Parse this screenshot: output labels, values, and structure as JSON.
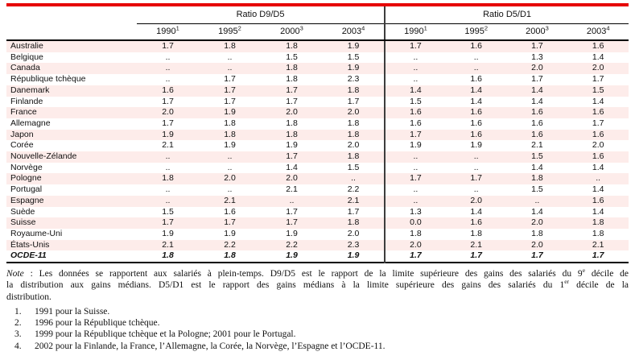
{
  "colors": {
    "accent_red": "#e60000",
    "row_pink": "#fdecea",
    "divider": "#3d3d3d"
  },
  "table": {
    "group_headers": [
      "Ratio D9/D5",
      "Ratio D5/D1"
    ],
    "years": [
      {
        "label": "1990",
        "sup": "1"
      },
      {
        "label": "1995",
        "sup": "2"
      },
      {
        "label": "2000",
        "sup": "3"
      },
      {
        "label": "2003",
        "sup": "4"
      }
    ],
    "rows": [
      {
        "label": "Australie",
        "bold": false,
        "d9d5": [
          "1.7",
          "1.8",
          "1.8",
          "1.9"
        ],
        "d5d1": [
          "1.7",
          "1.6",
          "1.7",
          "1.6"
        ]
      },
      {
        "label": "Belgique",
        "bold": false,
        "d9d5": [
          "..",
          "..",
          "1.5",
          "1.5"
        ],
        "d5d1": [
          "..",
          "..",
          "1.3",
          "1.4"
        ]
      },
      {
        "label": "Canada",
        "bold": false,
        "d9d5": [
          "..",
          "..",
          "1.8",
          "1.9"
        ],
        "d5d1": [
          "..",
          "..",
          "2.0",
          "2.0"
        ]
      },
      {
        "label": "République tchèque",
        "bold": false,
        "d9d5": [
          "..",
          "1.7",
          "1.8",
          "2.3"
        ],
        "d5d1": [
          "..",
          "1.6",
          "1.7",
          "1.7"
        ]
      },
      {
        "label": "Danemark",
        "bold": false,
        "d9d5": [
          "1.6",
          "1.7",
          "1.7",
          "1.8"
        ],
        "d5d1": [
          "1.4",
          "1.4",
          "1.4",
          "1.5"
        ]
      },
      {
        "label": "Finlande",
        "bold": false,
        "d9d5": [
          "1.7",
          "1.7",
          "1.7",
          "1.7"
        ],
        "d5d1": [
          "1.5",
          "1.4",
          "1.4",
          "1.4"
        ]
      },
      {
        "label": "France",
        "bold": false,
        "d9d5": [
          "2.0",
          "1.9",
          "2.0",
          "2.0"
        ],
        "d5d1": [
          "1.6",
          "1.6",
          "1.6",
          "1.6"
        ]
      },
      {
        "label": "Allemagne",
        "bold": false,
        "d9d5": [
          "1.7",
          "1.8",
          "1.8",
          "1.8"
        ],
        "d5d1": [
          "1.6",
          "1.6",
          "1.6",
          "1.7"
        ]
      },
      {
        "label": "Japon",
        "bold": false,
        "d9d5": [
          "1.9",
          "1.8",
          "1.8",
          "1.8"
        ],
        "d5d1": [
          "1.7",
          "1.6",
          "1.6",
          "1.6"
        ]
      },
      {
        "label": "Corée",
        "bold": false,
        "d9d5": [
          "2.1",
          "1.9",
          "1.9",
          "2.0"
        ],
        "d5d1": [
          "1.9",
          "1.9",
          "2.1",
          "2.0"
        ]
      },
      {
        "label": "Nouvelle-Zélande",
        "bold": false,
        "d9d5": [
          "..",
          "..",
          "1.7",
          "1.8"
        ],
        "d5d1": [
          "..",
          "..",
          "1.5",
          "1.6"
        ]
      },
      {
        "label": "Norvège",
        "bold": false,
        "d9d5": [
          "..",
          "..",
          "1.4",
          "1.5"
        ],
        "d5d1": [
          "..",
          "..",
          "1.4",
          "1.4"
        ]
      },
      {
        "label": "Pologne",
        "bold": false,
        "d9d5": [
          "1.8",
          "2.0",
          "2.0",
          ".."
        ],
        "d5d1": [
          "1.7",
          "1.7",
          "1.8",
          ".."
        ]
      },
      {
        "label": "Portugal",
        "bold": false,
        "d9d5": [
          "..",
          "..",
          "2.1",
          "2.2"
        ],
        "d5d1": [
          "..",
          "..",
          "1.5",
          "1.4"
        ]
      },
      {
        "label": "Espagne",
        "bold": false,
        "d9d5": [
          "..",
          "2.1",
          "..",
          "2.1"
        ],
        "d5d1": [
          "..",
          "2.0",
          "..",
          "1.6"
        ]
      },
      {
        "label": "Suède",
        "bold": false,
        "d9d5": [
          "1.5",
          "1.6",
          "1.7",
          "1.7"
        ],
        "d5d1": [
          "1.3",
          "1.4",
          "1.4",
          "1.4"
        ]
      },
      {
        "label": "Suisse",
        "bold": false,
        "d9d5": [
          "1.7",
          "1.7",
          "1.7",
          "1.8"
        ],
        "d5d1": [
          "0.0",
          "1.6",
          "2.0",
          "1.8"
        ]
      },
      {
        "label": "Royaume-Uni",
        "bold": false,
        "d9d5": [
          "1.9",
          "1.9",
          "1.9",
          "2.0"
        ],
        "d5d1": [
          "1.8",
          "1.8",
          "1.8",
          "1.8"
        ]
      },
      {
        "label": "États-Unis",
        "bold": false,
        "d9d5": [
          "2.1",
          "2.2",
          "2.2",
          "2.3"
        ],
        "d5d1": [
          "2.0",
          "2.1",
          "2.0",
          "2.1"
        ]
      },
      {
        "label": "OCDE-11",
        "bold": true,
        "d9d5": [
          "1.8",
          "1.8",
          "1.9",
          "1.9"
        ],
        "d5d1": [
          "1.7",
          "1.7",
          "1.7",
          "1.7"
        ]
      }
    ]
  },
  "note": {
    "label": "Note",
    "line1_a": " : Les données se rapportent aux salariés à plein-temps. D9/D5 est le rapport de la limite supérieure des gains des salariés du 9",
    "line1_sup": "e",
    "line1_b": " décile de",
    "line2_a": "la distribution aux gains médians. D5/D1 est le rapport des gains médians à la limite supérieure des gains des salariés du 1",
    "line2_sup": "er",
    "line2_b": " décile de la",
    "line3": "distribution."
  },
  "footnotes": [
    {
      "num": "1.",
      "text": "1991 pour la Suisse."
    },
    {
      "num": "2.",
      "text": "1996 pour la République tchèque."
    },
    {
      "num": "3.",
      "text": "1999 pour la République tchèque et la Pologne; 2001 pour le Portugal."
    },
    {
      "num": "4.",
      "text": "2002 pour la Finlande, la France, l’Allemagne, la Corée, la Norvège, l’Espagne et l’OCDE-11."
    }
  ]
}
